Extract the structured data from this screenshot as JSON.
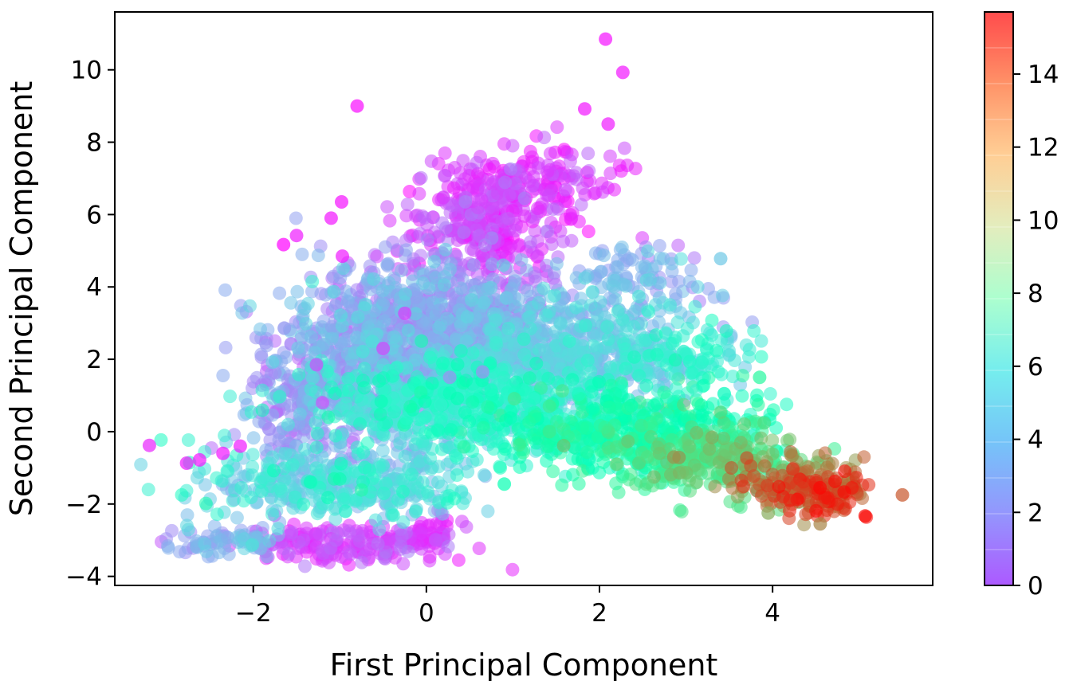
{
  "chart_data": {
    "type": "scatter",
    "xlabel": "First Principal Component",
    "ylabel": "Second Principal Component",
    "xlim": [
      -3.6,
      5.85
    ],
    "ylim": [
      -4.25,
      11.6
    ],
    "xticks": [
      -2,
      0,
      2,
      4
    ],
    "yticks": [
      -4,
      -2,
      0,
      2,
      4,
      6,
      8,
      10
    ],
    "colorbar": {
      "colormap": "rainbow",
      "range": [
        0,
        15.7
      ],
      "ticks": [
        0,
        2,
        4,
        6,
        8,
        10,
        12,
        14
      ]
    },
    "grid": false,
    "legend": "none",
    "marker_alpha": 0.55,
    "point_clusters": [
      {
        "cx": -0.6,
        "cy": 2.0,
        "sx": 0.6,
        "sy": 1.3,
        "n": 700,
        "c": 3.5,
        "cs": 0.8
      },
      {
        "cx": 0.3,
        "cy": 3.0,
        "sx": 0.6,
        "sy": 0.9,
        "n": 600,
        "c": 3.0,
        "cs": 0.8
      },
      {
        "cx": 0.7,
        "cy": 5.8,
        "sx": 0.5,
        "sy": 0.8,
        "n": 300,
        "c": 1.2,
        "cs": 0.6
      },
      {
        "cx": 1.3,
        "cy": 6.9,
        "sx": 0.5,
        "sy": 0.5,
        "n": 150,
        "c": 1.0,
        "cs": 0.5
      },
      {
        "cx": 1.6,
        "cy": 2.2,
        "sx": 0.8,
        "sy": 0.8,
        "n": 600,
        "c": 4.5,
        "cs": 0.7
      },
      {
        "cx": 0.5,
        "cy": 0.8,
        "sx": 0.9,
        "sy": 0.7,
        "n": 600,
        "c": 6.0,
        "cs": 0.9
      },
      {
        "cx": 2.3,
        "cy": 0.0,
        "sx": 0.8,
        "sy": 0.6,
        "n": 500,
        "c": 8.0,
        "cs": 1.0
      },
      {
        "cx": 3.3,
        "cy": -0.8,
        "sx": 0.5,
        "sy": 0.45,
        "n": 250,
        "c": 10.2,
        "cs": 1.0
      },
      {
        "cx": 4.3,
        "cy": -1.4,
        "sx": 0.35,
        "sy": 0.4,
        "n": 150,
        "c": 13.0,
        "cs": 1.2
      },
      {
        "cx": 4.6,
        "cy": -1.8,
        "sx": 0.25,
        "sy": 0.3,
        "n": 70,
        "c": 14.5,
        "cs": 0.8
      },
      {
        "cx": -1.0,
        "cy": -1.4,
        "sx": 0.8,
        "sy": 0.5,
        "n": 400,
        "c": 5.0,
        "cs": 1.0
      },
      {
        "cx": -0.9,
        "cy": -3.1,
        "sx": 0.7,
        "sy": 0.25,
        "n": 200,
        "c": 1.2,
        "cs": 0.5
      },
      {
        "cx": -2.4,
        "cy": -3.0,
        "sx": 0.35,
        "sy": 0.2,
        "n": 70,
        "c": 3.8,
        "cs": 0.6
      },
      {
        "cx": 0.1,
        "cy": -2.7,
        "sx": 0.1,
        "sy": 0.2,
        "n": 30,
        "c": 1.0,
        "cs": 0.3
      },
      {
        "cx": -1.5,
        "cy": 0.8,
        "sx": 0.3,
        "sy": 0.8,
        "n": 150,
        "c": 3.2,
        "cs": 0.6
      },
      {
        "cx": 2.4,
        "cy": 4.2,
        "sx": 0.5,
        "sy": 0.5,
        "n": 100,
        "c": 3.8,
        "cs": 0.6
      },
      {
        "cx": 3.0,
        "cy": 2.3,
        "sx": 0.4,
        "sy": 0.5,
        "n": 100,
        "c": 6.0,
        "cs": 0.8
      }
    ],
    "outliers": [
      {
        "x": 2.07,
        "y": 10.85,
        "c": 0.3
      },
      {
        "x": 2.27,
        "y": 9.93,
        "c": 0.4
      },
      {
        "x": -0.8,
        "y": 9.0,
        "c": 0.2
      },
      {
        "x": 1.83,
        "y": 8.92,
        "c": 0.4
      },
      {
        "x": 2.1,
        "y": 8.5,
        "c": 0.5
      },
      {
        "x": -1.65,
        "y": 5.17,
        "c": 0.0
      },
      {
        "x": -1.5,
        "y": 5.42,
        "c": 0.5
      },
      {
        "x": -0.98,
        "y": 6.35,
        "c": 0.3
      },
      {
        "x": -1.1,
        "y": 5.9,
        "c": 0.4
      },
      {
        "x": -0.97,
        "y": 4.85,
        "c": 0.5
      },
      {
        "x": -3.2,
        "y": -0.38,
        "c": 0.7
      },
      {
        "x": -2.77,
        "y": -0.87,
        "c": 0.5
      },
      {
        "x": -2.62,
        "y": -0.78,
        "c": 0.4
      },
      {
        "x": -2.35,
        "y": -0.6,
        "c": 0.4
      },
      {
        "x": -2.15,
        "y": -0.4,
        "c": 0.5
      },
      {
        "x": 5.5,
        "y": -1.75,
        "c": 14.0
      },
      {
        "x": 5.07,
        "y": -2.33,
        "c": 15.5
      },
      {
        "x": 4.2,
        "y": -1.9,
        "c": 15.0
      },
      {
        "x": 4.55,
        "y": -2.55,
        "c": 13.0
      },
      {
        "x": 3.95,
        "y": -2.25,
        "c": 12.0
      },
      {
        "x": -0.25,
        "y": 3.27,
        "c": 1.2
      },
      {
        "x": -0.5,
        "y": 2.3,
        "c": 1.4
      },
      {
        "x": -1.27,
        "y": 1.85,
        "c": 1.6
      },
      {
        "x": 0.65,
        "y": 1.65,
        "c": 3.0
      },
      {
        "x": 0.27,
        "y": 1.5,
        "c": 3.0
      },
      {
        "x": 3.4,
        "y": 4.78,
        "c": 4.5
      },
      {
        "x": 3.85,
        "y": 1.5,
        "c": 9.0
      },
      {
        "x": 0.9,
        "y": -1.45,
        "c": 8.0
      },
      {
        "x": -1.2,
        "y": 0.8,
        "c": 1.8
      }
    ]
  }
}
